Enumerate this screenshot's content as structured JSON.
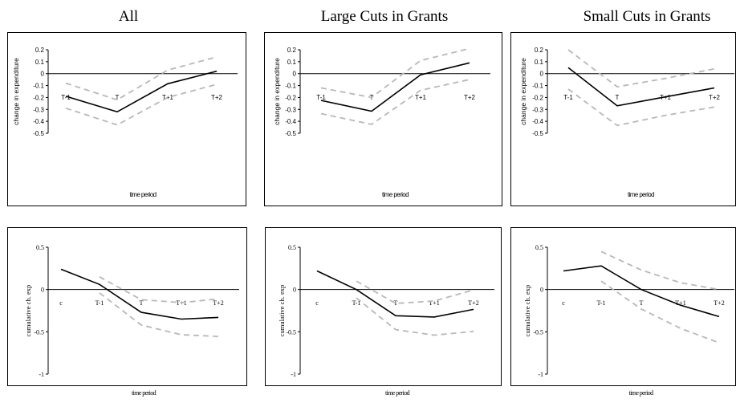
{
  "columns": [
    "All",
    "Large Cuts in Grants",
    "Small Cuts in Grants"
  ],
  "colors": {
    "point": "#000000",
    "band": "#b8b8b8"
  },
  "chart_data": [
    {
      "type": "line",
      "title": "All",
      "xlabel": "time period",
      "ylabel": "change in expenditure",
      "categories": [
        "T-1",
        "T",
        "T+1",
        "T+2"
      ],
      "yticks": [
        "0.2",
        "0.1",
        "0",
        "-0.1",
        "-0.2",
        "-0.3",
        "-0.4",
        "-0.5"
      ],
      "ylim": [
        -0.5,
        0.2
      ],
      "grid": false,
      "series": [
        {
          "role": "point",
          "values": [
            -0.19,
            -0.32,
            -0.085,
            0.02
          ]
        },
        {
          "role": "upper",
          "values": [
            -0.08,
            -0.22,
            0.03,
            0.14
          ]
        },
        {
          "role": "lower",
          "values": [
            -0.29,
            -0.43,
            -0.2,
            -0.09
          ]
        }
      ]
    },
    {
      "type": "line",
      "title": "Large Cuts in Grants",
      "xlabel": "time period",
      "ylabel": "change in expenditure",
      "categories": [
        "T-1",
        "T",
        "T+1",
        "T+2"
      ],
      "yticks": [
        "0.2",
        "0.1",
        "0",
        "-0.1",
        "-0.2",
        "-0.3",
        "-0.4",
        "-0.5"
      ],
      "ylim": [
        -0.5,
        0.2
      ],
      "grid": false,
      "series": [
        {
          "role": "point",
          "values": [
            -0.225,
            -0.315,
            -0.01,
            0.09
          ]
        },
        {
          "role": "upper",
          "values": [
            -0.12,
            -0.2,
            0.11,
            0.21
          ]
        },
        {
          "role": "lower",
          "values": [
            -0.335,
            -0.425,
            -0.14,
            -0.05
          ]
        }
      ]
    },
    {
      "type": "line",
      "title": "Small Cuts in Grants",
      "xlabel": "time period",
      "ylabel": "change in expenditure",
      "categories": [
        "T-1",
        "T",
        "T+1",
        "T+2"
      ],
      "yticks": [
        "0.2",
        "0.1",
        "0",
        "-0.1",
        "-0.2",
        "-0.3",
        "-0.4",
        "-0.5"
      ],
      "ylim": [
        -0.5,
        0.2
      ],
      "grid": false,
      "series": [
        {
          "role": "point",
          "values": [
            0.05,
            -0.27,
            -0.195,
            -0.12
          ]
        },
        {
          "role": "upper",
          "values": [
            0.2,
            -0.11,
            -0.04,
            0.04
          ]
        },
        {
          "role": "lower",
          "values": [
            -0.13,
            -0.435,
            -0.35,
            -0.28
          ]
        }
      ]
    },
    {
      "type": "line",
      "title": "",
      "xlabel": "time period",
      "ylabel": "cumulative ch. exp",
      "categories": [
        "c",
        "T-1",
        "T",
        "T+1",
        "T+2"
      ],
      "yticks": [
        "0.5",
        "0",
        "-0.5",
        "-1"
      ],
      "ylim": [
        -1,
        0.5
      ],
      "grid": false,
      "series": [
        {
          "role": "point",
          "values": [
            0.24,
            0.06,
            -0.27,
            -0.35,
            -0.33
          ]
        },
        {
          "role": "upper",
          "values": [
            null,
            0.15,
            -0.12,
            -0.155,
            -0.11
          ]
        },
        {
          "role": "lower",
          "values": [
            null,
            -0.04,
            -0.42,
            -0.535,
            -0.555
          ]
        }
      ]
    },
    {
      "type": "line",
      "title": "",
      "xlabel": "time period",
      "ylabel": "cumulative ch. exp",
      "categories": [
        "c",
        "T-1",
        "T",
        "T+1",
        "T+2"
      ],
      "yticks": [
        "0.5",
        "0",
        "-0.5",
        "-1"
      ],
      "ylim": [
        -1,
        0.5
      ],
      "grid": false,
      "series": [
        {
          "role": "point",
          "values": [
            0.22,
            0.0,
            -0.31,
            -0.325,
            -0.235
          ]
        },
        {
          "role": "upper",
          "values": [
            null,
            0.1,
            -0.165,
            -0.135,
            -0.005
          ]
        },
        {
          "role": "lower",
          "values": [
            null,
            -0.1,
            -0.475,
            -0.54,
            -0.495
          ]
        }
      ]
    },
    {
      "type": "line",
      "title": "",
      "xlabel": "time period",
      "ylabel": "cumulative ch. exp",
      "categories": [
        "c",
        "T-1",
        "T",
        "T+1",
        "T+2"
      ],
      "yticks": [
        "0.5",
        "0",
        "-0.5",
        "-1"
      ],
      "ylim": [
        -1,
        0.5
      ],
      "grid": false,
      "series": [
        {
          "role": "point",
          "values": [
            0.22,
            0.28,
            0.0,
            -0.185,
            -0.32
          ]
        },
        {
          "role": "upper",
          "values": [
            null,
            0.45,
            0.23,
            0.08,
            0.0
          ]
        },
        {
          "role": "lower",
          "values": [
            null,
            0.1,
            -0.23,
            -0.46,
            -0.63
          ]
        }
      ]
    }
  ]
}
